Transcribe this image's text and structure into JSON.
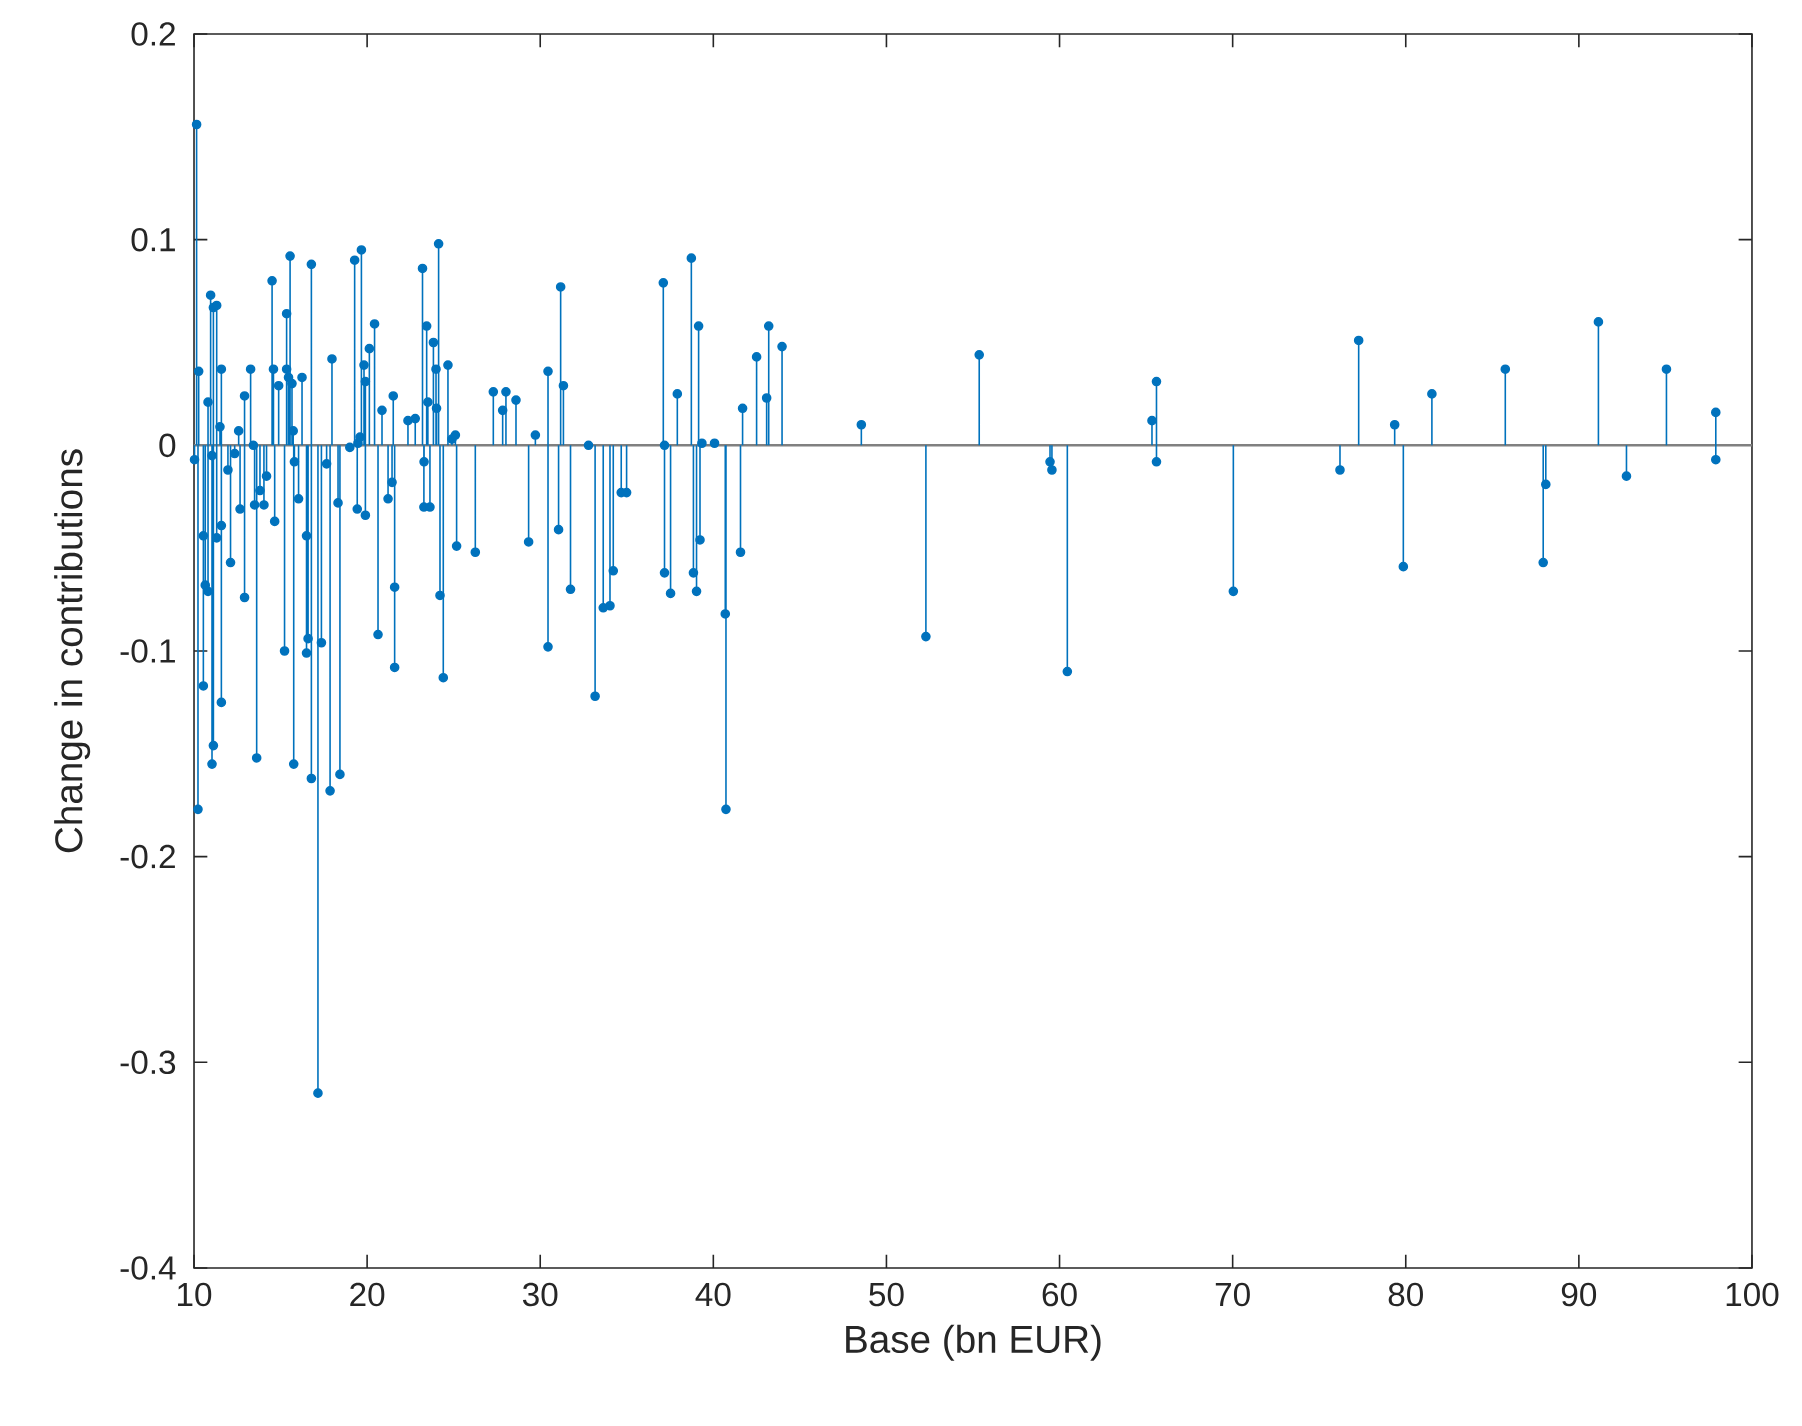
{
  "chart_data": {
    "type": "lollipop",
    "xlabel": "Base (bn EUR)",
    "ylabel": "Change in contributions",
    "xlim": [
      10,
      100
    ],
    "ylim": [
      -0.4,
      0.2
    ],
    "xticks": [
      10,
      20,
      30,
      40,
      50,
      60,
      70,
      80,
      90,
      100
    ],
    "yticks": [
      -0.4,
      -0.3,
      -0.2,
      -0.1,
      0,
      0.1,
      0.2
    ],
    "marker": "circle",
    "ref_lines": [
      {
        "axis": "y",
        "value": 0,
        "color": "#808080"
      }
    ],
    "series": [
      {
        "color": "#0072bd",
        "x": [
          10.15,
          10.27,
          10.03,
          10.23,
          10.54,
          10.54,
          10.65,
          10.81,
          10.81,
          10.96,
          11.04,
          11.12,
          11.12,
          11.04,
          11.31,
          11.31,
          11.5,
          11.58,
          11.58,
          11.58,
          11.96,
          12.11,
          12.35,
          12.58,
          12.66,
          12.92,
          12.92,
          13.27,
          13.43,
          13.5,
          13.62,
          13.81,
          14.04,
          14.19,
          14.51,
          14.59,
          14.66,
          14.89,
          15.23,
          15.35,
          15.35,
          15.46,
          15.55,
          15.66,
          15.73,
          15.8,
          15.76,
          16.04,
          16.24,
          16.5,
          16.59,
          16.5,
          16.78,
          16.78,
          17.16,
          17.36,
          17.66,
          17.86,
          17.97,
          18.32,
          18.43,
          19.0,
          19.28,
          19.47,
          19.67,
          19.59,
          19.43,
          19.82,
          19.9,
          19.9,
          20.13,
          20.43,
          20.63,
          20.86,
          21.21,
          21.51,
          21.59,
          21.44,
          21.59,
          22.36,
          22.78,
          23.2,
          23.29,
          23.44,
          23.28,
          23.51,
          23.63,
          23.83,
          23.98,
          24.01,
          24.13,
          24.21,
          24.4,
          24.67,
          24.9,
          25.1,
          25.17,
          26.25,
          27.29,
          27.83,
          28.02,
          28.6,
          29.33,
          29.72,
          30.45,
          30.45,
          31.06,
          31.18,
          31.34,
          31.75,
          32.79,
          33.17,
          33.64,
          34.03,
          34.22,
          34.68,
          34.99,
          37.11,
          37.18,
          37.18,
          37.53,
          37.92,
          38.73,
          38.85,
          39.03,
          39.15,
          39.23,
          39.34,
          40.07,
          40.69,
          40.73,
          41.57,
          41.69,
          42.5,
          43.08,
          43.2,
          43.97,
          48.55,
          52.28,
          55.36,
          59.45,
          59.56,
          60.45,
          65.34,
          65.6,
          65.6,
          70.04,
          76.2,
          77.28,
          79.36,
          79.86,
          81.51,
          85.75,
          87.94,
          88.09,
          91.13,
          92.75,
          95.06,
          97.91,
          97.91
        ],
        "values": [
          0.156,
          0.036,
          -0.007,
          -0.177,
          -0.044,
          -0.117,
          -0.068,
          -0.071,
          0.021,
          0.073,
          -0.005,
          0.067,
          -0.146,
          -0.155,
          0.068,
          -0.045,
          0.009,
          0.037,
          -0.039,
          -0.125,
          -0.012,
          -0.057,
          -0.004,
          0.007,
          -0.031,
          0.024,
          -0.074,
          0.037,
          0,
          -0.029,
          -0.152,
          -0.022,
          -0.029,
          -0.015,
          0.08,
          0.037,
          -0.037,
          0.029,
          -0.1,
          0.064,
          0.037,
          0.033,
          0.092,
          0.03,
          0.007,
          -0.008,
          -0.155,
          -0.026,
          0.033,
          -0.044,
          -0.094,
          -0.101,
          0.088,
          -0.162,
          -0.315,
          -0.096,
          -0.009,
          -0.168,
          0.042,
          -0.028,
          -0.16,
          -0.001,
          0.09,
          0.001,
          0.095,
          0.004,
          -0.031,
          0.039,
          -0.034,
          0.031,
          0.047,
          0.059,
          -0.092,
          0.017,
          -0.026,
          0.024,
          -0.108,
          -0.018,
          -0.069,
          0.012,
          0.013,
          0.086,
          -0.008,
          0.058,
          -0.03,
          0.021,
          -0.03,
          0.05,
          0.037,
          0.018,
          0.098,
          -0.073,
          -0.113,
          0.039,
          0.003,
          0.005,
          -0.049,
          -0.052,
          0.026,
          0.017,
          0.026,
          0.022,
          -0.047,
          0.005,
          0.036,
          -0.098,
          -0.041,
          0.077,
          0.029,
          -0.07,
          0,
          -0.122,
          -0.079,
          -0.078,
          -0.061,
          -0.023,
          -0.023,
          0.079,
          0,
          -0.062,
          -0.072,
          0.025,
          0.091,
          -0.062,
          -0.071,
          0.058,
          -0.046,
          0.001,
          0.001,
          -0.082,
          -0.177,
          -0.052,
          0.018,
          0.043,
          0.023,
          0.058,
          0.048,
          0.01,
          -0.093,
          0.044,
          -0.008,
          -0.012,
          -0.11,
          0.012,
          0.031,
          -0.008,
          -0.071,
          -0.012,
          0.051,
          0.01,
          -0.059,
          0.025,
          0.037,
          -0.057,
          -0.019,
          0.06,
          -0.015,
          0.037,
          0.016,
          -0.007
        ]
      }
    ]
  }
}
